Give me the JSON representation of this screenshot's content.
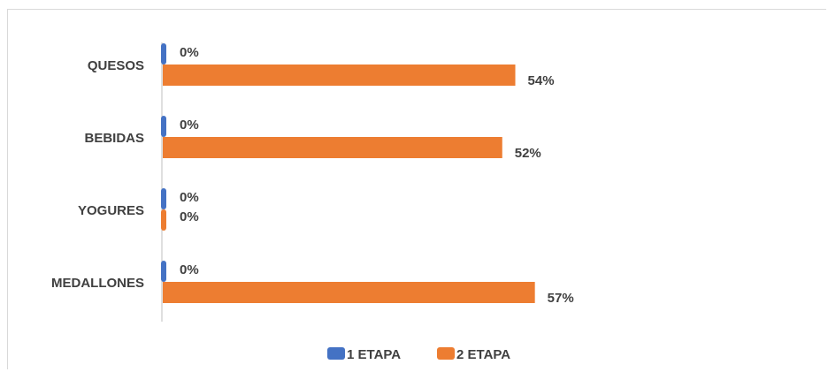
{
  "chart_data": {
    "type": "bar",
    "orientation": "horizontal",
    "categories": [
      "QUESOS",
      "BEBIDAS",
      "YOGURES",
      "MEDALLONES"
    ],
    "series": [
      {
        "name": "1 ETAPA",
        "color": "#4472C4",
        "values": [
          0,
          0,
          0,
          0
        ],
        "labels": [
          "0%",
          "0%",
          "0%",
          "0%"
        ]
      },
      {
        "name": "2 ETAPA",
        "color": "#ED7D31",
        "values": [
          54,
          52,
          0,
          57
        ],
        "labels": [
          "54%",
          "52%",
          "0%",
          "57%"
        ]
      }
    ],
    "value_unit": "%",
    "xlim": [
      0,
      100
    ],
    "legend_position": "bottom",
    "grid": false
  }
}
